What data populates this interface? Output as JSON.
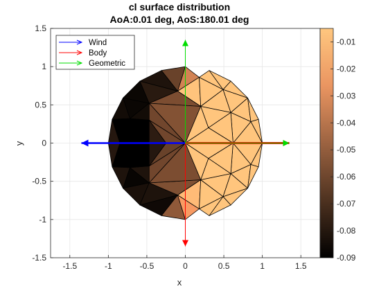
{
  "chart_data": {
    "type": "heatmap",
    "title": "cl surface distribution",
    "subtitle": "AoA:0.01 deg,  AoS:180.01 deg",
    "xlabel": "x",
    "ylabel": "y",
    "xlim": [
      -1.75,
      1.75
    ],
    "ylim": [
      -1.5,
      1.5
    ],
    "xticks": [
      "-1.5",
      "-1",
      "-0.5",
      "0",
      "0.5",
      "1",
      "1.5"
    ],
    "yticks": [
      "-1.5",
      "-1",
      "-0.5",
      "0",
      "0.5",
      "1",
      "1.5"
    ],
    "grid": true,
    "legend": {
      "placement": "top-left",
      "entries": [
        {
          "name": "Wind",
          "color": "#0000ff"
        },
        {
          "name": "Body",
          "color": "#ff0000"
        },
        {
          "name": "Geometric",
          "color": "#00dd00"
        }
      ]
    },
    "colorbar": {
      "ticks": [
        "-0.01",
        "-0.02",
        "-0.03",
        "-0.04",
        "-0.05",
        "-0.06",
        "-0.07",
        "-0.08",
        "-0.09"
      ],
      "range": [
        -0.09,
        -0.005
      ],
      "colormap": "copper"
    },
    "vectors": [
      {
        "name": "Wind",
        "from": [
          0,
          0
        ],
        "to": [
          -1.35,
          0
        ]
      },
      {
        "name": "Body",
        "from": [
          0,
          0
        ],
        "to": [
          1.35,
          0
        ]
      },
      {
        "name": "Body",
        "from": [
          0,
          0
        ],
        "to": [
          0,
          -1.35
        ]
      },
      {
        "name": "Geometric",
        "from": [
          0,
          0
        ],
        "to": [
          1.35,
          0
        ]
      },
      {
        "name": "Geometric",
        "from": [
          0,
          0
        ],
        "to": [
          0,
          1.35
        ]
      }
    ],
    "faces": [
      {
        "pts": [
          [
            0,
            1
          ],
          [
            -0.31,
            0.95
          ],
          [
            -0.1,
            0.68
          ]
        ],
        "cl": -0.062
      },
      {
        "pts": [
          [
            -0.31,
            0.95
          ],
          [
            -0.59,
            0.81
          ],
          [
            -0.1,
            0.68
          ]
        ],
        "cl": -0.082
      },
      {
        "pts": [
          [
            -0.59,
            0.81
          ],
          [
            -0.81,
            0.59
          ],
          [
            -0.47,
            0.52
          ]
        ],
        "cl": -0.087
      },
      {
        "pts": [
          [
            -0.59,
            0.81
          ],
          [
            -0.1,
            0.68
          ],
          [
            -0.47,
            0.52
          ]
        ],
        "cl": -0.079
      },
      {
        "pts": [
          [
            0,
            1
          ],
          [
            -0.1,
            0.68
          ],
          [
            0.18,
            0.86
          ]
        ],
        "cl": -0.034
      },
      {
        "pts": [
          [
            -0.1,
            0.68
          ],
          [
            0.18,
            0.86
          ],
          [
            0.2,
            0.48
          ]
        ],
        "cl": -0.007
      },
      {
        "pts": [
          [
            -0.47,
            0.52
          ],
          [
            -0.1,
            0.68
          ],
          [
            0.2,
            0.48
          ]
        ],
        "cl": -0.057
      },
      {
        "pts": [
          [
            -0.47,
            0.52
          ],
          [
            0.2,
            0.48
          ],
          [
            0,
            0
          ]
        ],
        "cl": -0.055
      },
      {
        "pts": [
          [
            -0.81,
            0.59
          ],
          [
            -0.47,
            0.52
          ],
          [
            -0.72,
            0.32
          ]
        ],
        "cl": -0.087
      },
      {
        "pts": [
          [
            -0.47,
            0.52
          ],
          [
            -0.72,
            0.32
          ],
          [
            -0.47,
            0.3
          ]
        ],
        "cl": -0.085
      },
      {
        "pts": [
          [
            -0.47,
            0.3
          ],
          [
            -0.47,
            0.52
          ],
          [
            0,
            0
          ]
        ],
        "cl": -0.06
      },
      {
        "pts": [
          [
            -0.47,
            0.3
          ],
          [
            0,
            0
          ],
          [
            -0.25,
            0
          ]
        ],
        "cl": -0.06
      },
      {
        "pts": [
          [
            -0.81,
            0.59
          ],
          [
            -0.95,
            0.31
          ],
          [
            -0.72,
            0.32
          ]
        ],
        "cl": -0.085
      },
      {
        "pts": [
          [
            -0.95,
            0.31
          ],
          [
            -0.72,
            0.32
          ],
          [
            -0.85,
            0
          ]
        ],
        "cl": -0.09
      },
      {
        "pts": [
          [
            -0.95,
            0.31
          ],
          [
            -0.85,
            0
          ],
          [
            -1,
            0
          ]
        ],
        "cl": -0.08
      },
      {
        "pts": [
          [
            -0.72,
            0.32
          ],
          [
            -0.47,
            0.3
          ],
          [
            -0.85,
            0
          ]
        ],
        "cl": -0.09
      },
      {
        "pts": [
          [
            -0.47,
            0.3
          ],
          [
            -0.85,
            0
          ],
          [
            -0.47,
            0
          ]
        ],
        "cl": -0.09
      },
      {
        "pts": [
          [
            -0.47,
            0.3
          ],
          [
            -0.47,
            0
          ],
          [
            -0.25,
            0
          ]
        ],
        "cl": -0.078
      },
      {
        "pts": [
          [
            0,
            -1
          ],
          [
            -0.31,
            -0.95
          ],
          [
            -0.1,
            -0.68
          ]
        ],
        "cl": -0.052
      },
      {
        "pts": [
          [
            -0.31,
            -0.95
          ],
          [
            -0.59,
            -0.81
          ],
          [
            -0.1,
            -0.68
          ]
        ],
        "cl": -0.086
      },
      {
        "pts": [
          [
            -0.59,
            -0.81
          ],
          [
            -0.81,
            -0.59
          ],
          [
            -0.47,
            -0.52
          ]
        ],
        "cl": -0.083
      },
      {
        "pts": [
          [
            -0.59,
            -0.81
          ],
          [
            -0.1,
            -0.68
          ],
          [
            -0.47,
            -0.52
          ]
        ],
        "cl": -0.082
      },
      {
        "pts": [
          [
            0,
            -1
          ],
          [
            -0.1,
            -0.68
          ],
          [
            0.18,
            -0.86
          ]
        ],
        "cl": -0.024
      },
      {
        "pts": [
          [
            -0.1,
            -0.68
          ],
          [
            0.18,
            -0.86
          ],
          [
            0.2,
            -0.48
          ]
        ],
        "cl": -0.01
      },
      {
        "pts": [
          [
            -0.47,
            -0.52
          ],
          [
            -0.1,
            -0.68
          ],
          [
            0.2,
            -0.48
          ]
        ],
        "cl": -0.056
      },
      {
        "pts": [
          [
            -0.47,
            -0.52
          ],
          [
            0.2,
            -0.48
          ],
          [
            0,
            0
          ]
        ],
        "cl": -0.057
      },
      {
        "pts": [
          [
            -0.81,
            -0.59
          ],
          [
            -0.47,
            -0.52
          ],
          [
            -0.72,
            -0.32
          ]
        ],
        "cl": -0.088
      },
      {
        "pts": [
          [
            -0.47,
            -0.52
          ],
          [
            -0.72,
            -0.32
          ],
          [
            -0.47,
            -0.3
          ]
        ],
        "cl": -0.082
      },
      {
        "pts": [
          [
            -0.47,
            -0.3
          ],
          [
            -0.47,
            -0.52
          ],
          [
            0,
            0
          ]
        ],
        "cl": -0.06
      },
      {
        "pts": [
          [
            -0.47,
            -0.3
          ],
          [
            0,
            0
          ],
          [
            -0.25,
            0
          ]
        ],
        "cl": -0.062
      },
      {
        "pts": [
          [
            -0.81,
            -0.59
          ],
          [
            -0.95,
            -0.31
          ],
          [
            -0.72,
            -0.32
          ]
        ],
        "cl": -0.082
      },
      {
        "pts": [
          [
            -0.95,
            -0.31
          ],
          [
            -0.72,
            -0.32
          ],
          [
            -0.85,
            0
          ]
        ],
        "cl": -0.09
      },
      {
        "pts": [
          [
            -0.95,
            -0.31
          ],
          [
            -0.85,
            0
          ],
          [
            -1,
            0
          ]
        ],
        "cl": -0.08
      },
      {
        "pts": [
          [
            -0.72,
            -0.32
          ],
          [
            -0.47,
            -0.3
          ],
          [
            -0.85,
            0
          ]
        ],
        "cl": -0.09
      },
      {
        "pts": [
          [
            -0.47,
            -0.3
          ],
          [
            -0.85,
            0
          ],
          [
            -0.47,
            0
          ]
        ],
        "cl": -0.09
      },
      {
        "pts": [
          [
            -0.47,
            -0.3
          ],
          [
            -0.47,
            0
          ],
          [
            -0.25,
            0
          ]
        ],
        "cl": -0.08
      },
      {
        "pts": [
          [
            0.18,
            0.86
          ],
          [
            0.31,
            0.95
          ],
          [
            0.49,
            0.7
          ]
        ],
        "cl": -0.006
      },
      {
        "pts": [
          [
            0.31,
            0.95
          ],
          [
            0.59,
            0.81
          ],
          [
            0.49,
            0.7
          ]
        ],
        "cl": -0.006
      },
      {
        "pts": [
          [
            0.59,
            0.81
          ],
          [
            0.81,
            0.59
          ],
          [
            0.49,
            0.7
          ]
        ],
        "cl": -0.006
      },
      {
        "pts": [
          [
            0.18,
            0.86
          ],
          [
            0.2,
            0.48
          ],
          [
            0.49,
            0.7
          ]
        ],
        "cl": -0.006
      },
      {
        "pts": [
          [
            0.2,
            0.48
          ],
          [
            0.49,
            0.7
          ],
          [
            0.59,
            0.4
          ]
        ],
        "cl": -0.006
      },
      {
        "pts": [
          [
            0.49,
            0.7
          ],
          [
            0.81,
            0.59
          ],
          [
            0.59,
            0.4
          ]
        ],
        "cl": -0.006
      },
      {
        "pts": [
          [
            0.81,
            0.59
          ],
          [
            0.59,
            0.4
          ],
          [
            0.85,
            0.28
          ]
        ],
        "cl": -0.006
      },
      {
        "pts": [
          [
            0.81,
            0.59
          ],
          [
            0.95,
            0.31
          ],
          [
            0.85,
            0.28
          ]
        ],
        "cl": -0.006
      },
      {
        "pts": [
          [
            0.95,
            0.31
          ],
          [
            0.85,
            0.28
          ],
          [
            1,
            0
          ]
        ],
        "cl": -0.006
      },
      {
        "pts": [
          [
            0.85,
            0.28
          ],
          [
            1,
            0
          ],
          [
            0.62,
            0
          ]
        ],
        "cl": -0.006
      },
      {
        "pts": [
          [
            0.59,
            0.4
          ],
          [
            0.85,
            0.28
          ],
          [
            0.62,
            0
          ]
        ],
        "cl": -0.006
      },
      {
        "pts": [
          [
            0.2,
            0.48
          ],
          [
            0.59,
            0.4
          ],
          [
            0.3,
            0.2
          ]
        ],
        "cl": -0.006
      },
      {
        "pts": [
          [
            0.59,
            0.4
          ],
          [
            0.62,
            0
          ],
          [
            0.3,
            0.2
          ]
        ],
        "cl": -0.006
      },
      {
        "pts": [
          [
            0.2,
            0.48
          ],
          [
            0.3,
            0.2
          ],
          [
            0,
            0
          ]
        ],
        "cl": -0.006
      },
      {
        "pts": [
          [
            0.3,
            0.2
          ],
          [
            0.62,
            0
          ],
          [
            0,
            0
          ]
        ],
        "cl": -0.006
      },
      {
        "pts": [
          [
            0.18,
            -0.86
          ],
          [
            0.31,
            -0.95
          ],
          [
            0.49,
            -0.7
          ]
        ],
        "cl": -0.006
      },
      {
        "pts": [
          [
            0.31,
            -0.95
          ],
          [
            0.59,
            -0.81
          ],
          [
            0.49,
            -0.7
          ]
        ],
        "cl": -0.006
      },
      {
        "pts": [
          [
            0.59,
            -0.81
          ],
          [
            0.81,
            -0.59
          ],
          [
            0.49,
            -0.7
          ]
        ],
        "cl": -0.006
      },
      {
        "pts": [
          [
            0.18,
            -0.86
          ],
          [
            0.2,
            -0.48
          ],
          [
            0.49,
            -0.7
          ]
        ],
        "cl": -0.006
      },
      {
        "pts": [
          [
            0.2,
            -0.48
          ],
          [
            0.49,
            -0.7
          ],
          [
            0.59,
            -0.4
          ]
        ],
        "cl": -0.006
      },
      {
        "pts": [
          [
            0.49,
            -0.7
          ],
          [
            0.81,
            -0.59
          ],
          [
            0.59,
            -0.4
          ]
        ],
        "cl": -0.006
      },
      {
        "pts": [
          [
            0.81,
            -0.59
          ],
          [
            0.59,
            -0.4
          ],
          [
            0.85,
            -0.28
          ]
        ],
        "cl": -0.006
      },
      {
        "pts": [
          [
            0.81,
            -0.59
          ],
          [
            0.95,
            -0.31
          ],
          [
            0.85,
            -0.28
          ]
        ],
        "cl": -0.006
      },
      {
        "pts": [
          [
            0.95,
            -0.31
          ],
          [
            0.85,
            -0.28
          ],
          [
            1,
            0
          ]
        ],
        "cl": -0.006
      },
      {
        "pts": [
          [
            0.85,
            -0.28
          ],
          [
            1,
            0
          ],
          [
            0.62,
            0
          ]
        ],
        "cl": -0.006
      },
      {
        "pts": [
          [
            0.59,
            -0.4
          ],
          [
            0.85,
            -0.28
          ],
          [
            0.62,
            0
          ]
        ],
        "cl": -0.006
      },
      {
        "pts": [
          [
            0.2,
            -0.48
          ],
          [
            0.59,
            -0.4
          ],
          [
            0.3,
            -0.2
          ]
        ],
        "cl": -0.006
      },
      {
        "pts": [
          [
            0.59,
            -0.4
          ],
          [
            0.62,
            0
          ],
          [
            0.3,
            -0.2
          ]
        ],
        "cl": -0.006
      },
      {
        "pts": [
          [
            0.2,
            -0.48
          ],
          [
            0.3,
            -0.2
          ],
          [
            0,
            0
          ]
        ],
        "cl": -0.006
      },
      {
        "pts": [
          [
            0.3,
            -0.2
          ],
          [
            0.62,
            0
          ],
          [
            0,
            0
          ]
        ],
        "cl": -0.006
      }
    ]
  }
}
